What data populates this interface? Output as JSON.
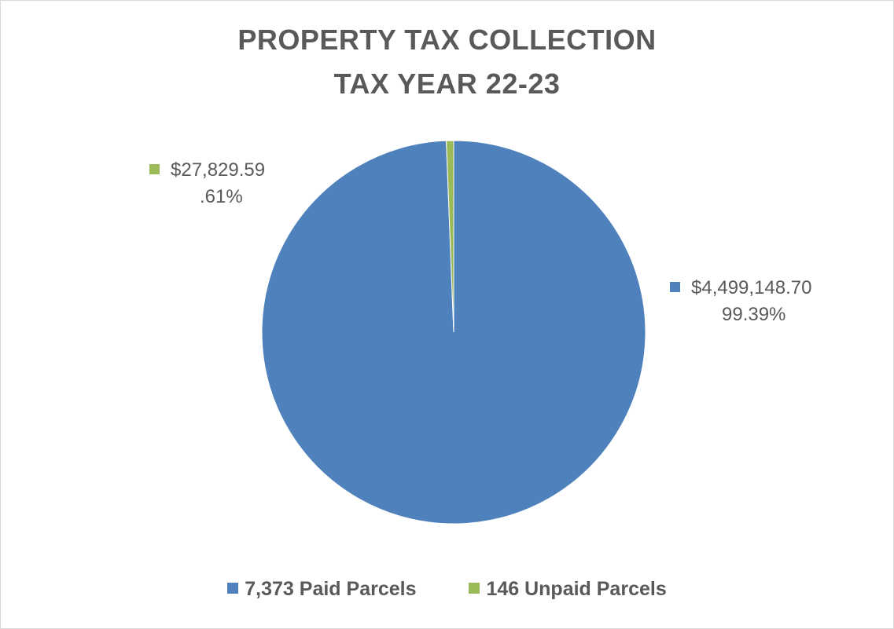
{
  "chart_data": {
    "type": "pie",
    "title": "PROPERTY TAX COLLECTION",
    "subtitle": "TAX YEAR 22-23",
    "categories": [
      "7,373 Paid Parcels",
      "146 Unpaid Parcels"
    ],
    "values": [
      4499148.7,
      27829.59
    ],
    "percentages": [
      99.39,
      0.61
    ],
    "data_labels": [
      {
        "amount": "$4,499,148.70",
        "percent": "99.39%"
      },
      {
        "amount": "$27,829.59",
        "percent": ".61%"
      }
    ],
    "colors": [
      "#4f81bd",
      "#9bbb59"
    ],
    "legend_position": "bottom"
  }
}
